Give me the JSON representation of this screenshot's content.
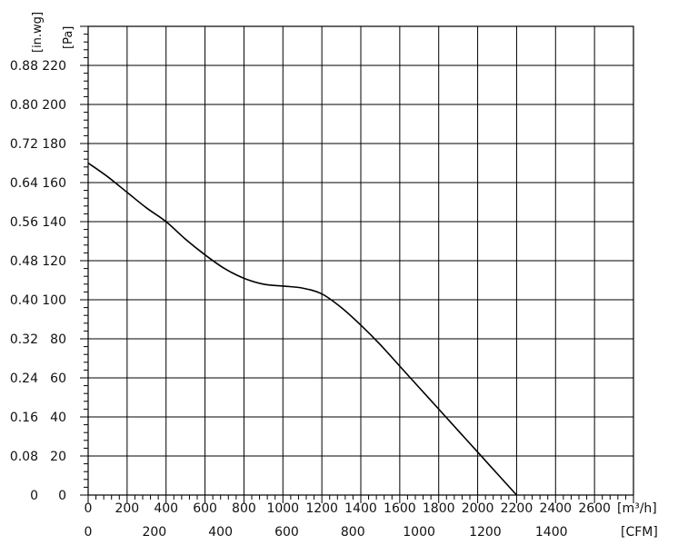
{
  "chart_data": {
    "type": "line",
    "series": [
      {
        "x": [
          0,
          100,
          200,
          300,
          400,
          500,
          600,
          700,
          800,
          900,
          1000,
          1100,
          1200,
          1300,
          1400,
          1500,
          1600,
          1700,
          1800,
          1900,
          2000,
          2100,
          2200,
          2300
        ],
        "values": [
          170,
          163,
          155,
          147,
          140,
          131,
          123,
          116,
          111,
          108,
          107,
          106,
          103,
          96,
          87,
          77,
          66,
          55,
          44,
          33,
          22,
          11,
          0,
          0
        ]
      }
    ],
    "x_axis": {
      "unit_label": "[m³/h]",
      "ticks": [
        0,
        200,
        400,
        600,
        800,
        1000,
        1200,
        1400,
        1600,
        1800,
        2000,
        2200,
        2400,
        2600
      ],
      "range": [
        0,
        2800
      ]
    },
    "x_axis_secondary": {
      "unit_label": "[CFM]",
      "ticks": [
        0,
        200,
        400,
        600,
        800,
        1000,
        1200,
        1400
      ]
    },
    "y_axis": {
      "unit_label": "[Pa]",
      "ticks": [
        0,
        20,
        40,
        60,
        80,
        100,
        120,
        140,
        160,
        180,
        200,
        220
      ],
      "range": [
        0,
        240
      ]
    },
    "y_axis_secondary": {
      "unit_label": "[in.wg]",
      "ticks": [
        "0",
        "0.08",
        "0.16",
        "0.24",
        "0.32",
        "0.40",
        "0.48",
        "0.56",
        "0.64",
        "0.72",
        "0.80",
        "0.88"
      ]
    },
    "grid": true,
    "line_color": "#000000"
  }
}
